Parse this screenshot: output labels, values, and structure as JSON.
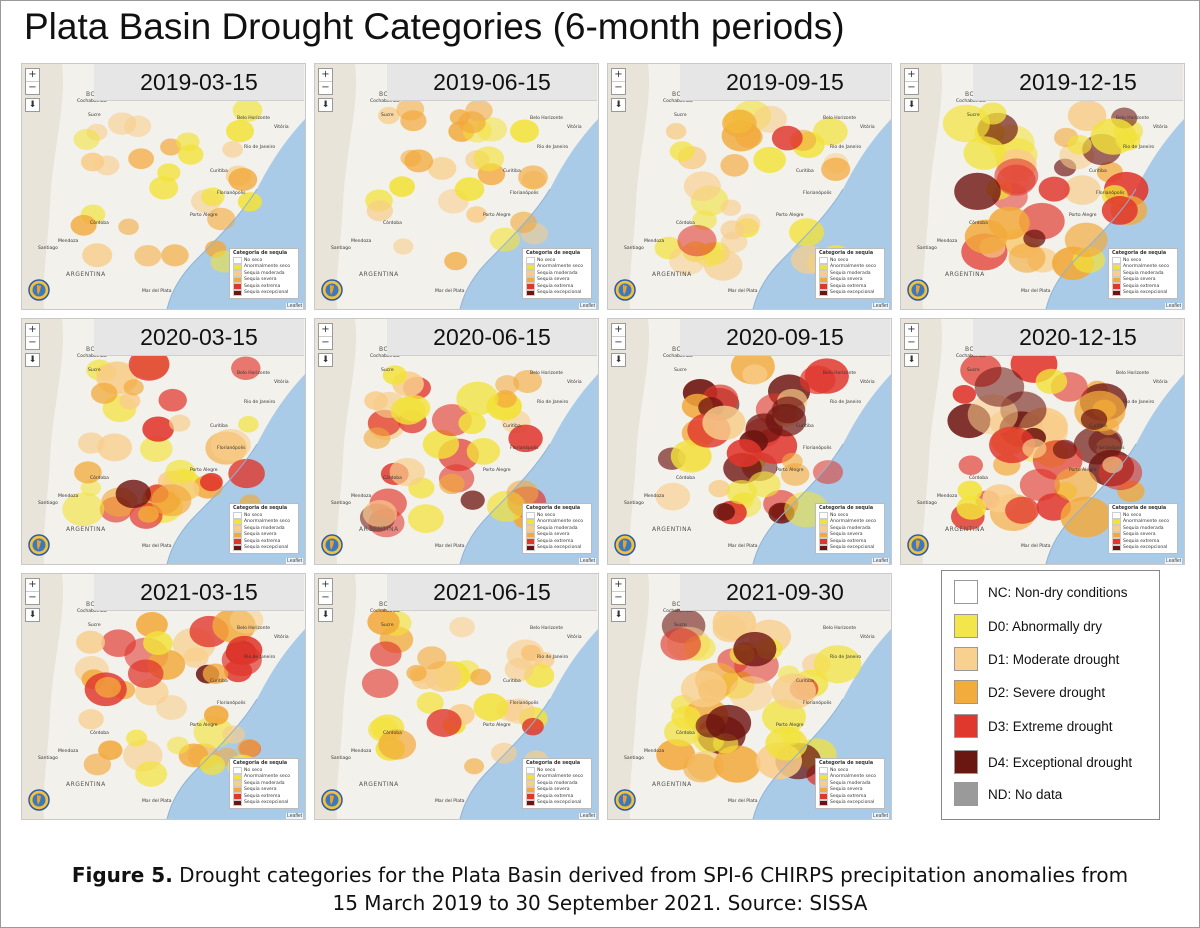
{
  "title": "Plata Basin Drought Categories (6-month periods)",
  "panels": [
    {
      "date": "2019-03-15",
      "intensity": 0.35
    },
    {
      "date": "2019-06-15",
      "intensity": 0.35
    },
    {
      "date": "2019-09-15",
      "intensity": 0.6
    },
    {
      "date": "2019-12-15",
      "intensity": 0.85
    },
    {
      "date": "2020-03-15",
      "intensity": 0.7
    },
    {
      "date": "2020-06-15",
      "intensity": 0.7
    },
    {
      "date": "2020-09-15",
      "intensity": 0.85
    },
    {
      "date": "2020-12-15",
      "intensity": 1.0
    },
    {
      "date": "2021-03-15",
      "intensity": 0.8
    },
    {
      "date": "2021-06-15",
      "intensity": 0.6
    },
    {
      "date": "2021-09-30",
      "intensity": 0.9
    }
  ],
  "map_controls": {
    "zoom_in": "+",
    "zoom_out": "−",
    "download": "⬇"
  },
  "map_labels": {
    "country": "ARGENTINA",
    "bolivia": "BOL",
    "cochabamba": "Cochabamba",
    "sucre": "Sucre",
    "belo_horizonte": "Belo Horizonte",
    "vitoria": "Vitória",
    "rio": "Rio de Janeiro",
    "curitiba": "Curitiba",
    "florianopolis": "Florianópolis",
    "porto_alegre": "Porto Alegre",
    "cordoba": "Córdoba",
    "mendoza": "Mendoza",
    "santiago": "Santiago",
    "mar_del_plata": "Mar del Plata",
    "attribution": "Leaflet"
  },
  "mini_legend": {
    "title": "Categoria de sequia",
    "items": [
      {
        "label": "No seco",
        "color": "#ffffff"
      },
      {
        "label": "Anormalmente seco",
        "color": "#f2e23a"
      },
      {
        "label": "Sequia moderada",
        "color": "#f8cd8a"
      },
      {
        "label": "Sequia severa",
        "color": "#f2a93b"
      },
      {
        "label": "Sequia extrema",
        "color": "#e0362c"
      },
      {
        "label": "Sequia excepcional",
        "color": "#6e1410"
      }
    ]
  },
  "legend": [
    {
      "label": "NC: Non-dry conditions",
      "color": "#ffffff"
    },
    {
      "label": "D0: Abnormally dry",
      "color": "#f2e64a"
    },
    {
      "label": "D1: Moderate drought",
      "color": "#f8d08f"
    },
    {
      "label": "D2: Severe drought",
      "color": "#f2ac3c"
    },
    {
      "label": "D3: Extreme drought",
      "color": "#e1382e"
    },
    {
      "label": "D4: Exceptional drought",
      "color": "#6a1712"
    },
    {
      "label": "ND: No data",
      "color": "#9a9a9a"
    }
  ],
  "caption": {
    "label": "Figure 5.",
    "line1": " Drought categories for the Plata Basin derived from SPI-6 CHIRPS precipitation anomalies from",
    "line2": "15 March 2019 to 30 September 2021. Source: SISSA"
  }
}
